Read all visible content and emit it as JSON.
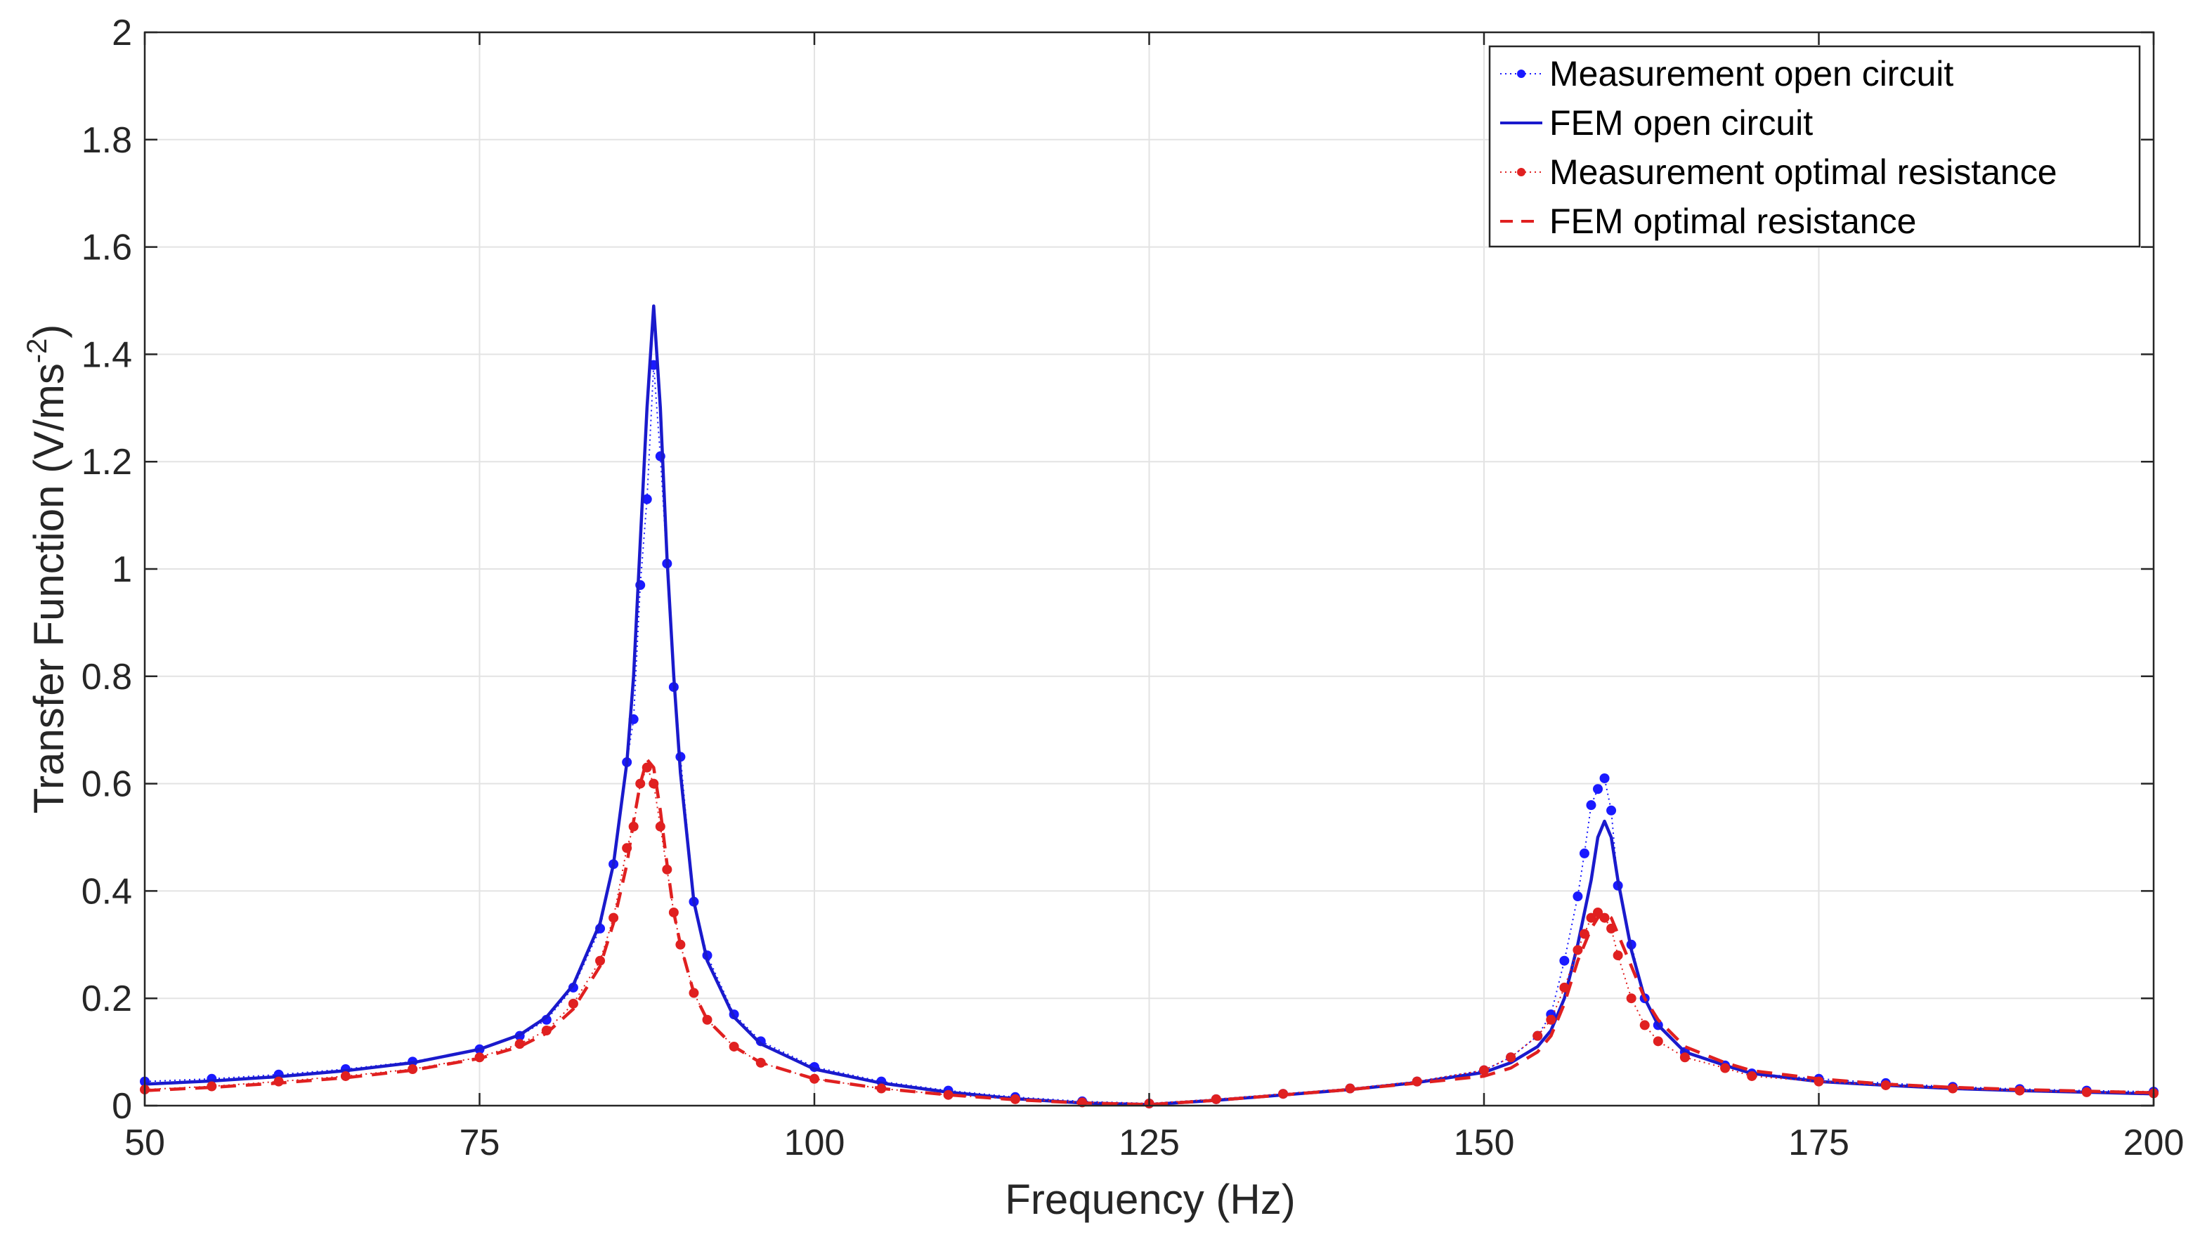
{
  "chart_data": {
    "type": "line",
    "title": "",
    "xlabel": "Frequency (Hz)",
    "ylabel_main": "Transfer Function (V/ms",
    "ylabel_sup": "-2",
    "ylabel_close": ")",
    "xlim": [
      50,
      200
    ],
    "ylim": [
      0,
      2
    ],
    "xticks": [
      50,
      75,
      100,
      125,
      150,
      175,
      200
    ],
    "yticks": [
      0,
      0.2,
      0.4,
      0.6,
      0.8,
      1,
      1.2,
      1.4,
      1.6,
      1.8,
      2
    ],
    "xtick_labels": [
      "50",
      "75",
      "100",
      "125",
      "150",
      "175",
      "200"
    ],
    "ytick_labels": [
      "0",
      "0.2",
      "0.4",
      "0.6",
      "0.8",
      "1",
      "1.2",
      "1.4",
      "1.6",
      "1.8",
      "2"
    ],
    "grid": true,
    "legend_position": "top-right",
    "series": [
      {
        "name": "Measurement open circuit",
        "style": "dots",
        "color": "#1a1aff",
        "x": [
          50,
          55,
          60,
          65,
          70,
          75,
          78,
          80,
          82,
          84,
          85,
          86,
          86.5,
          87,
          87.5,
          88,
          88.5,
          89,
          89.5,
          90,
          91,
          92,
          94,
          96,
          100,
          105,
          110,
          115,
          120,
          125,
          130,
          135,
          140,
          145,
          150,
          152,
          154,
          155,
          156,
          157,
          157.5,
          158,
          158.5,
          159,
          159.5,
          160,
          161,
          162,
          163,
          165,
          168,
          170,
          175,
          180,
          185,
          190,
          195,
          200
        ],
        "y": [
          0.045,
          0.05,
          0.058,
          0.068,
          0.082,
          0.105,
          0.13,
          0.16,
          0.22,
          0.33,
          0.45,
          0.64,
          0.72,
          0.97,
          1.13,
          1.38,
          1.21,
          1.01,
          0.78,
          0.65,
          0.38,
          0.28,
          0.17,
          0.12,
          0.072,
          0.045,
          0.028,
          0.016,
          0.008,
          0.004,
          0.012,
          0.022,
          0.032,
          0.045,
          0.066,
          0.09,
          0.13,
          0.17,
          0.27,
          0.39,
          0.47,
          0.56,
          0.59,
          0.61,
          0.55,
          0.41,
          0.3,
          0.2,
          0.15,
          0.1,
          0.075,
          0.06,
          0.05,
          0.042,
          0.035,
          0.031,
          0.028,
          0.026
        ]
      },
      {
        "name": "FEM open circuit",
        "style": "solid",
        "color": "#1a1acc",
        "x": [
          50,
          55,
          60,
          65,
          70,
          75,
          78,
          80,
          82,
          84,
          85,
          86,
          86.5,
          87,
          87.5,
          88,
          88.5,
          89,
          89.5,
          90,
          91,
          92,
          94,
          96,
          100,
          105,
          110,
          115,
          120,
          125,
          130,
          135,
          140,
          145,
          150,
          152,
          154,
          155,
          156,
          157,
          158,
          158.5,
          159,
          159.5,
          160,
          161,
          162,
          163,
          165,
          168,
          170,
          175,
          180,
          185,
          190,
          195,
          200
        ],
        "y": [
          0.04,
          0.046,
          0.054,
          0.065,
          0.08,
          0.105,
          0.132,
          0.165,
          0.225,
          0.34,
          0.45,
          0.64,
          0.8,
          1.05,
          1.3,
          1.49,
          1.3,
          1.02,
          0.8,
          0.62,
          0.38,
          0.27,
          0.165,
          0.115,
          0.068,
          0.042,
          0.025,
          0.013,
          0.005,
          0.002,
          0.01,
          0.02,
          0.03,
          0.043,
          0.062,
          0.08,
          0.11,
          0.14,
          0.2,
          0.3,
          0.42,
          0.5,
          0.53,
          0.5,
          0.42,
          0.29,
          0.2,
          0.15,
          0.1,
          0.075,
          0.06,
          0.045,
          0.038,
          0.032,
          0.028,
          0.025,
          0.022
        ]
      },
      {
        "name": "Measurement optimal resistance",
        "style": "dots",
        "color": "#e02020",
        "x": [
          50,
          55,
          60,
          65,
          70,
          75,
          78,
          80,
          82,
          84,
          85,
          86,
          86.5,
          87,
          87.5,
          88,
          88.5,
          89,
          89.5,
          90,
          91,
          92,
          94,
          96,
          100,
          105,
          110,
          115,
          120,
          125,
          130,
          135,
          140,
          145,
          150,
          152,
          154,
          155,
          156,
          157,
          157.5,
          158,
          158.5,
          159,
          159.5,
          160,
          161,
          162,
          163,
          165,
          168,
          170,
          175,
          180,
          185,
          190,
          195,
          200
        ],
        "y": [
          0.03,
          0.036,
          0.045,
          0.055,
          0.068,
          0.09,
          0.115,
          0.14,
          0.19,
          0.27,
          0.35,
          0.48,
          0.52,
          0.6,
          0.63,
          0.6,
          0.52,
          0.44,
          0.36,
          0.3,
          0.21,
          0.16,
          0.11,
          0.08,
          0.05,
          0.032,
          0.02,
          0.012,
          0.006,
          0.004,
          0.012,
          0.022,
          0.032,
          0.045,
          0.066,
          0.09,
          0.13,
          0.16,
          0.22,
          0.29,
          0.32,
          0.35,
          0.36,
          0.35,
          0.33,
          0.28,
          0.2,
          0.15,
          0.12,
          0.09,
          0.07,
          0.055,
          0.045,
          0.038,
          0.032,
          0.028,
          0.025,
          0.023
        ]
      },
      {
        "name": "FEM optimal resistance",
        "style": "dashed",
        "color": "#e02020",
        "x": [
          50,
          55,
          60,
          65,
          70,
          75,
          78,
          80,
          82,
          84,
          85,
          86,
          86.5,
          87,
          87.5,
          88,
          88.5,
          89,
          89.5,
          90,
          91,
          92,
          94,
          96,
          100,
          105,
          110,
          115,
          120,
          125,
          130,
          135,
          140,
          145,
          150,
          152,
          154,
          155,
          156,
          157,
          158,
          158.5,
          159,
          159.5,
          160,
          161,
          162,
          163,
          165,
          168,
          170,
          175,
          180,
          185,
          190,
          195,
          200
        ],
        "y": [
          0.028,
          0.034,
          0.042,
          0.052,
          0.066,
          0.088,
          0.11,
          0.135,
          0.18,
          0.26,
          0.34,
          0.45,
          0.53,
          0.6,
          0.645,
          0.63,
          0.55,
          0.45,
          0.36,
          0.3,
          0.21,
          0.16,
          0.11,
          0.08,
          0.05,
          0.032,
          0.02,
          0.011,
          0.005,
          0.002,
          0.01,
          0.02,
          0.03,
          0.042,
          0.055,
          0.07,
          0.1,
          0.13,
          0.19,
          0.27,
          0.33,
          0.35,
          0.36,
          0.35,
          0.32,
          0.26,
          0.2,
          0.16,
          0.11,
          0.08,
          0.065,
          0.05,
          0.04,
          0.034,
          0.03,
          0.027,
          0.024
        ]
      }
    ]
  }
}
